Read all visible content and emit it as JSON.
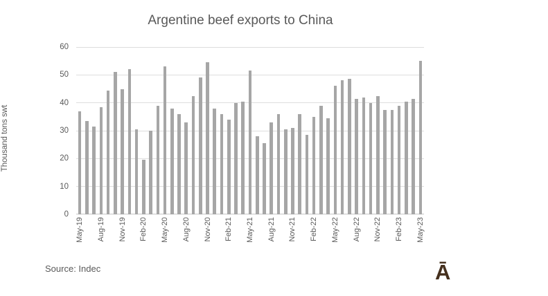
{
  "source": "Source: Indec",
  "logo_glyph": "Ā",
  "colors": {
    "bar": "#a6a6a6",
    "gridline": "#dddddd",
    "axis_line": "#c6c6c6",
    "text": "#595959",
    "logo": "#45301e"
  },
  "chart_data": {
    "type": "bar",
    "title": "Argentine beef exports to China",
    "xlabel": "",
    "ylabel": "Thousand tons swt",
    "ylim": [
      0,
      60
    ],
    "ytick_step": 10,
    "grid": true,
    "legend": false,
    "x_tick_label_every": 3,
    "categories": [
      "May-19",
      "Jun-19",
      "Jul-19",
      "Aug-19",
      "Sep-19",
      "Oct-19",
      "Nov-19",
      "Dec-19",
      "Jan-20",
      "Feb-20",
      "Mar-20",
      "Apr-20",
      "May-20",
      "Jun-20",
      "Jul-20",
      "Aug-20",
      "Sep-20",
      "Oct-20",
      "Nov-20",
      "Dec-20",
      "Jan-21",
      "Feb-21",
      "Mar-21",
      "Apr-21",
      "May-21",
      "Jun-21",
      "Jul-21",
      "Aug-21",
      "Sep-21",
      "Oct-21",
      "Nov-21",
      "Dec-21",
      "Jan-22",
      "Feb-22",
      "Mar-22",
      "Apr-22",
      "May-22",
      "Jun-22",
      "Jul-22",
      "Aug-22",
      "Sep-22",
      "Oct-22",
      "Nov-22",
      "Dec-22",
      "Jan-23",
      "Feb-23",
      "Mar-23",
      "Apr-23",
      "May-23"
    ],
    "values": [
      37,
      33.5,
      31.5,
      38.5,
      44.5,
      51,
      45,
      52,
      30.5,
      19.5,
      30,
      39,
      53,
      38,
      36,
      33,
      42.5,
      49,
      54.5,
      38,
      36,
      34,
      40,
      40.5,
      51.5,
      28,
      25.5,
      33,
      36,
      30.5,
      31,
      36,
      28.5,
      35,
      39,
      34.5,
      46,
      48,
      48.5,
      41.5,
      42,
      40,
      42.5,
      37.5,
      37.5,
      39,
      40.5,
      41.5,
      55
    ]
  }
}
